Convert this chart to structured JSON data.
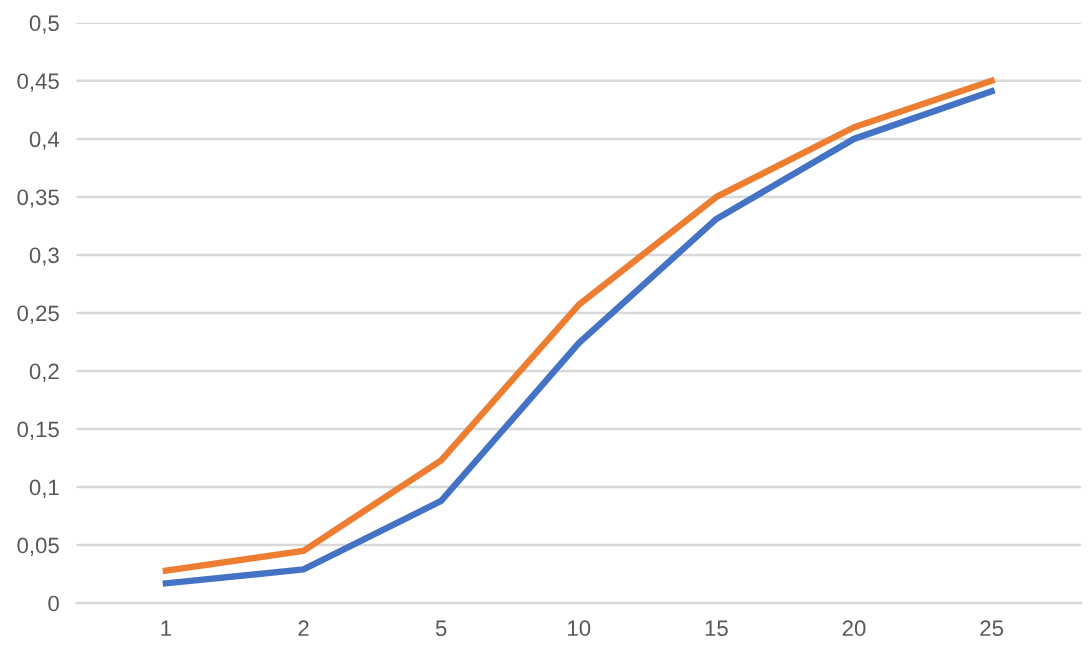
{
  "chart_data": {
    "type": "line",
    "categories": [
      "1",
      "2",
      "5",
      "10",
      "15",
      "20",
      "25"
    ],
    "series": [
      {
        "color": "#4472c4",
        "values": [
          0.017,
          0.029,
          0.088,
          0.224,
          0.331,
          0.4,
          0.441
        ]
      },
      {
        "color": "#ed7d31",
        "values": [
          0.028,
          0.045,
          0.123,
          0.257,
          0.35,
          0.41,
          0.45
        ]
      }
    ],
    "ylim": [
      0,
      0.5
    ],
    "yticks": [
      {
        "value": 0,
        "label": "0"
      },
      {
        "value": 0.05,
        "label": "0,05"
      },
      {
        "value": 0.1,
        "label": "0,1"
      },
      {
        "value": 0.15,
        "label": "0,15"
      },
      {
        "value": 0.2,
        "label": "0,2"
      },
      {
        "value": 0.25,
        "label": "0,25"
      },
      {
        "value": 0.3,
        "label": "0,3"
      },
      {
        "value": 0.35,
        "label": "0,35"
      },
      {
        "value": 0.4,
        "label": "0,4"
      },
      {
        "value": 0.45,
        "label": "0,45"
      },
      {
        "value": 0.5,
        "label": "0,5"
      }
    ],
    "grid": "y",
    "marker": "none",
    "line_style": "solid"
  }
}
